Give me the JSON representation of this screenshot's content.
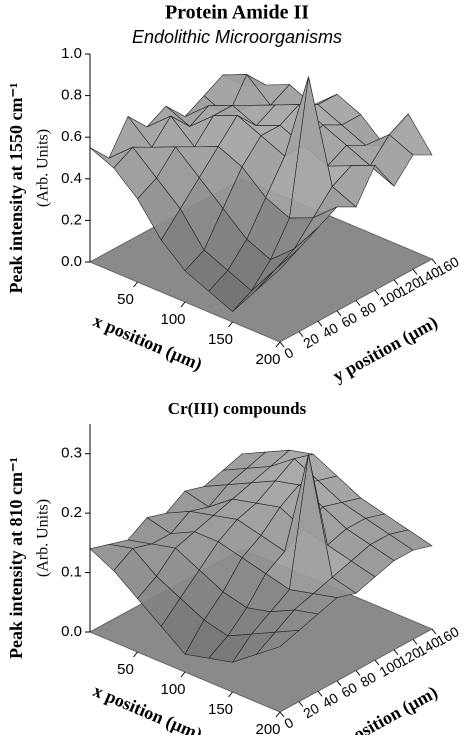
{
  "chart_data": [
    {
      "type": "surface",
      "title": "Protein Amide II",
      "subtitle": "Endolithic Microorganisms",
      "zlabel": "Peak intensity at 1550 cm⁻¹",
      "zunits": "(Arb. Units)",
      "xlabel": "x position (µm)",
      "ylabel": "y position (µm)",
      "x": [
        0,
        25,
        50,
        75,
        100,
        125,
        150,
        175,
        200
      ],
      "y": [
        0,
        20,
        40,
        60,
        80,
        100,
        120,
        140,
        160
      ],
      "z": [
        [
          0.55,
          0.5,
          0.4,
          0.25,
          0.15,
          0.1,
          0.05,
          0.2,
          0.35
        ],
        [
          0.45,
          0.55,
          0.45,
          0.35,
          0.2,
          0.15,
          0.1,
          0.25,
          0.4
        ],
        [
          0.6,
          0.5,
          0.55,
          0.45,
          0.35,
          0.25,
          0.2,
          0.3,
          0.45
        ],
        [
          0.5,
          0.6,
          0.5,
          0.55,
          0.5,
          0.4,
          0.35,
          0.4,
          0.5
        ],
        [
          0.55,
          0.5,
          0.6,
          0.65,
          0.6,
          0.55,
          0.98,
          0.5,
          0.45
        ],
        [
          0.45,
          0.55,
          0.6,
          0.55,
          0.6,
          0.55,
          0.5,
          0.55,
          0.6
        ],
        [
          0.5,
          0.45,
          0.55,
          0.6,
          0.65,
          0.6,
          0.55,
          0.5,
          0.45
        ],
        [
          0.55,
          0.6,
          0.5,
          0.55,
          0.6,
          0.55,
          0.5,
          0.6,
          0.55
        ],
        [
          0.45,
          0.5,
          0.55,
          0.5,
          0.6,
          0.55,
          0.45,
          0.65,
          0.5
        ]
      ],
      "xlim": [
        0,
        200
      ],
      "ylim": [
        0,
        160
      ],
      "zlim": [
        0,
        1.0
      ],
      "xticks": [
        50,
        100,
        150,
        200
      ],
      "yticks": [
        0,
        20,
        40,
        60,
        80,
        100,
        120,
        140,
        160
      ],
      "zticks": [
        {
          "value": 0,
          "label": "0.0"
        },
        0.2,
        0.4,
        0.6,
        0.8,
        {
          "value": 1,
          "label": "1.0"
        }
      ]
    },
    {
      "type": "surface",
      "title": "Cr(III) compounds",
      "zlabel": "Peak intensity at 810 cm⁻¹",
      "zunits": "(Arb. Units)",
      "xlabel": "x position (µm)",
      "ylabel": "y position (µm)",
      "x": [
        0,
        25,
        50,
        75,
        100,
        125,
        150,
        175,
        200
      ],
      "y": [
        0,
        20,
        40,
        60,
        80,
        100,
        120,
        140,
        160
      ],
      "z": [
        [
          0.14,
          0.12,
          0.09,
          0.06,
          0.03,
          0.04,
          0.05,
          0.08,
          0.11
        ],
        [
          0.13,
          0.14,
          0.11,
          0.09,
          0.07,
          0.06,
          0.08,
          0.1,
          0.12
        ],
        [
          0.12,
          0.13,
          0.14,
          0.12,
          0.1,
          0.09,
          0.1,
          0.12,
          0.13
        ],
        [
          0.14,
          0.13,
          0.15,
          0.15,
          0.14,
          0.13,
          0.12,
          0.13,
          0.14
        ],
        [
          0.13,
          0.15,
          0.16,
          0.17,
          0.16,
          0.15,
          0.33,
          0.14,
          0.13
        ],
        [
          0.15,
          0.14,
          0.17,
          0.18,
          0.19,
          0.17,
          0.16,
          0.15,
          0.14
        ],
        [
          0.14,
          0.16,
          0.18,
          0.2,
          0.21,
          0.19,
          0.17,
          0.16,
          0.15
        ],
        [
          0.15,
          0.17,
          0.19,
          0.22,
          0.2,
          0.18,
          0.17,
          0.16,
          0.15
        ],
        [
          0.16,
          0.18,
          0.2,
          0.21,
          0.19,
          0.17,
          0.16,
          0.15,
          0.14
        ]
      ],
      "xlim": [
        0,
        200
      ],
      "ylim": [
        0,
        160
      ],
      "zlim": [
        0,
        0.35
      ],
      "xticks": [
        50,
        100,
        150,
        200
      ],
      "yticks": [
        0,
        20,
        40,
        60,
        80,
        100,
        120,
        140,
        160
      ],
      "zticks": [
        {
          "value": 0,
          "label": "0.0"
        },
        0.1,
        0.2,
        0.3
      ]
    }
  ]
}
